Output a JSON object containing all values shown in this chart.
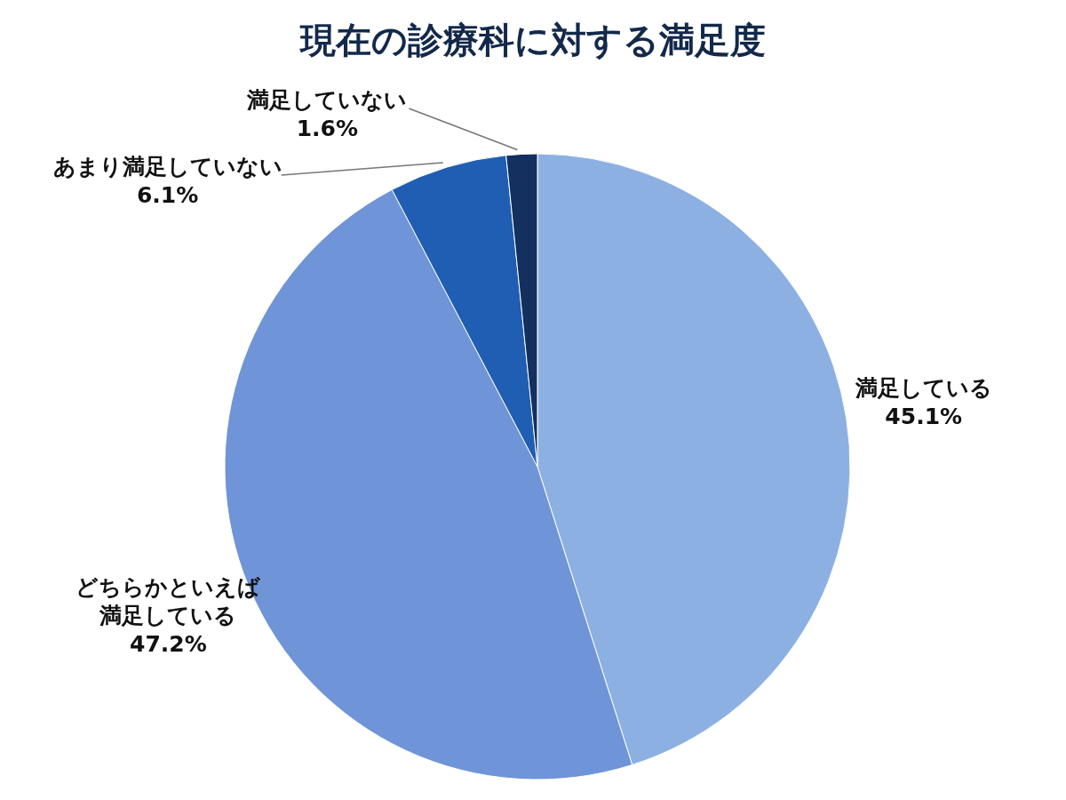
{
  "chart_data": {
    "type": "pie",
    "title": "現在の診療科に対する満足度",
    "categories": [
      "満足している",
      "どちらかといえば満足している",
      "あまり満足していない",
      "満足していない"
    ],
    "values": [
      45.1,
      47.2,
      6.1,
      1.6
    ],
    "value_labels": [
      "45.1%",
      "47.2%",
      "6.1%",
      "1.6%"
    ],
    "colors": [
      "#8db0e3",
      "#6f94d7",
      "#1f5eb2",
      "#13305e"
    ],
    "legend": false
  }
}
